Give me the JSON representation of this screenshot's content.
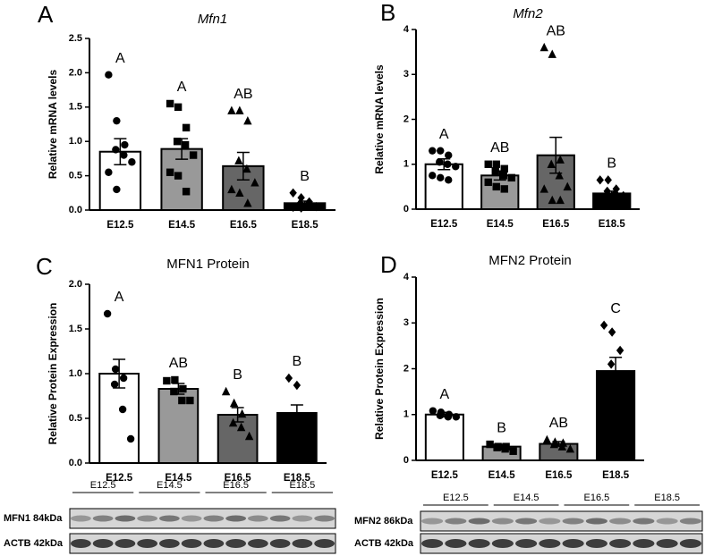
{
  "chart_data": [
    {
      "type": "bar",
      "panel_label": "A",
      "title": "Mfn1",
      "title_italic": true,
      "ylabel": "Relative mRNA levels",
      "categories": [
        "E12.5",
        "E14.5",
        "E16.5",
        "E18.5"
      ],
      "values": [
        0.85,
        0.89,
        0.64,
        0.1
      ],
      "errors": [
        0.19,
        0.15,
        0.2,
        0.03
      ],
      "colors": [
        "#ffffff",
        "#999999",
        "#666666",
        "#000000"
      ],
      "markers": [
        "circle",
        "square",
        "triangle",
        "diamond"
      ],
      "points": [
        [
          1.97,
          1.3,
          0.95,
          0.88,
          0.8,
          0.7,
          0.55,
          0.3
        ],
        [
          1.55,
          1.5,
          1.2,
          1.0,
          0.95,
          0.8,
          0.55,
          0.5,
          0.27
        ],
        [
          1.45,
          1.45,
          1.3,
          0.72,
          0.6,
          0.4,
          0.3,
          0.25,
          0.1
        ],
        [
          0.25,
          0.18,
          0.12,
          0.1,
          0.08,
          0.05,
          0.04,
          0.03
        ]
      ],
      "letters": [
        "A",
        "A",
        "AB",
        "B"
      ],
      "ylim": [
        0,
        2.5
      ],
      "yticks": [
        {
          "value": 0,
          "label": "0.0"
        },
        0.5,
        {
          "value": 1,
          "label": "1.0"
        },
        1.5,
        {
          "value": 2,
          "label": "2.0"
        },
        2.5
      ]
    },
    {
      "type": "bar",
      "panel_label": "B",
      "title": "Mfn2",
      "title_italic": true,
      "ylabel": "Relative mRNA levels",
      "categories": [
        "E12.5",
        "E14.5",
        "E16.5",
        "E18.5"
      ],
      "values": [
        1.0,
        0.75,
        1.2,
        0.35
      ],
      "errors": [
        0.12,
        0.1,
        0.4,
        0.05
      ],
      "colors": [
        "#ffffff",
        "#999999",
        "#666666",
        "#000000"
      ],
      "markers": [
        "circle",
        "square",
        "triangle",
        "diamond"
      ],
      "points": [
        [
          1.3,
          1.3,
          1.2,
          1.05,
          1.0,
          0.95,
          0.75,
          0.7,
          0.65
        ],
        [
          1.0,
          1.0,
          0.9,
          0.85,
          0.75,
          0.7,
          0.6,
          0.5,
          0.45
        ],
        [
          3.6,
          3.45,
          1.1,
          1.0,
          0.75,
          0.5,
          0.45,
          0.2,
          0.2
        ],
        [
          0.65,
          0.65,
          0.45,
          0.4,
          0.35,
          0.3,
          0.25,
          0.2
        ]
      ],
      "letters": [
        "A",
        "AB",
        "AB",
        "B"
      ],
      "ylim": [
        0,
        4
      ],
      "yticks": [
        0,
        1,
        2,
        3,
        4
      ]
    },
    {
      "type": "bar",
      "panel_label": "C",
      "title": "MFN1 Protein",
      "title_italic": false,
      "ylabel": "Relative Protein Expression",
      "categories": [
        "E12.5",
        "E14.5",
        "E16.5",
        "E18.5"
      ],
      "values": [
        1.0,
        0.83,
        0.54,
        0.56
      ],
      "errors": [
        0.16,
        0.06,
        0.08,
        0.09
      ],
      "colors": [
        "#ffffff",
        "#999999",
        "#666666",
        "#000000"
      ],
      "markers": [
        "circle",
        "square",
        "triangle",
        "diamond"
      ],
      "points": [
        [
          1.67,
          1.05,
          0.95,
          0.88,
          0.6,
          0.27
        ],
        [
          0.92,
          0.93,
          0.83,
          0.8,
          0.7,
          0.7
        ],
        [
          0.8,
          0.67,
          0.55,
          0.45,
          0.4,
          0.3
        ],
        [
          0.95,
          0.87
        ]
      ],
      "letters": [
        "A",
        "AB",
        "B",
        "B"
      ],
      "ylim": [
        0,
        2
      ],
      "yticks": [
        {
          "value": 0,
          "label": "0.0"
        },
        0.5,
        {
          "value": 1,
          "label": "1.0"
        },
        1.5,
        {
          "value": 2,
          "label": "2.0"
        }
      ]
    },
    {
      "type": "bar",
      "panel_label": "D",
      "title": "MFN2 Protein",
      "title_italic": false,
      "ylabel": "Relative Protein Expression",
      "categories": [
        "E12.5",
        "E14.5",
        "E16.5",
        "E18.5"
      ],
      "values": [
        1.0,
        0.3,
        0.36,
        1.95
      ],
      "errors": [
        0.05,
        0.05,
        0.05,
        0.3
      ],
      "colors": [
        "#ffffff",
        "#999999",
        "#666666",
        "#000000"
      ],
      "markers": [
        "circle",
        "square",
        "triangle",
        "diamond"
      ],
      "points": [
        [
          1.08,
          1.05,
          1.0,
          0.98,
          0.95,
          0.95
        ],
        [
          0.35,
          0.3,
          0.3,
          0.28,
          0.25,
          0.2
        ],
        [
          0.45,
          0.4,
          0.38,
          0.35,
          0.3,
          0.25
        ],
        [
          2.95,
          2.8,
          2.4,
          2.1
        ]
      ],
      "letters": [
        "A",
        "B",
        "AB",
        "C"
      ],
      "ylim": [
        0,
        4
      ],
      "yticks": [
        0,
        1,
        2,
        3,
        4
      ]
    }
  ],
  "blots": [
    {
      "lanes": [
        "E12.5",
        "E14.5",
        "E16.5",
        "E18.5"
      ],
      "rows": [
        "MFN1 84kDa",
        "ACTB 42kDa"
      ]
    },
    {
      "lanes": [
        "E12.5",
        "E14.5",
        "E16.5",
        "E18.5"
      ],
      "rows": [
        "MFN2 86kDa",
        "ACTB 42kDa"
      ]
    }
  ]
}
